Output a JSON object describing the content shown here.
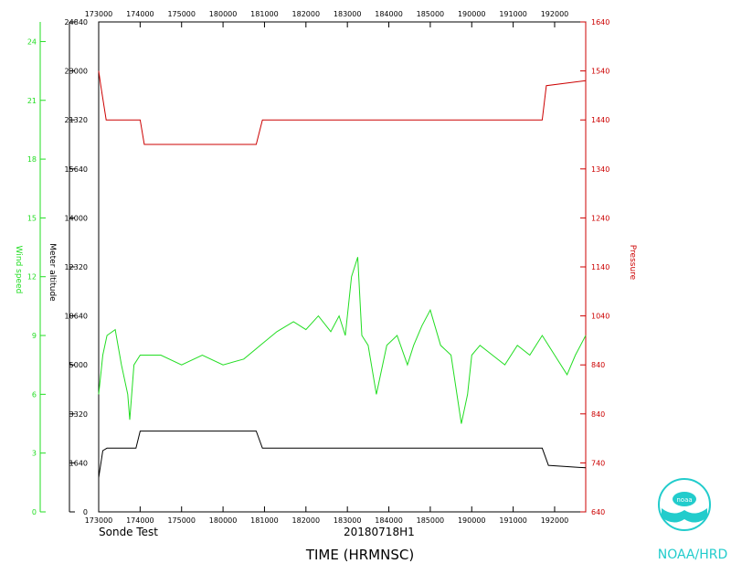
{
  "colors": {
    "wind": "#22dd22",
    "pressure": "#cc0000",
    "altitude": "#000000",
    "axis": "#000000",
    "logo": "#22cccc"
  },
  "labels": {
    "wind_axis": "Wind speed",
    "altitude_axis": "Meter altitude",
    "pressure_axis": "Pressure",
    "sonde": "Sonde Test",
    "flight": "20180718H1",
    "xtitle": "TIME (HRMNSC)",
    "logo": "NOAA/HRD",
    "logo_badge": "noaa"
  },
  "chart_data": {
    "type": "line",
    "xlabel": "TIME (HRMNSC)",
    "x_ticks": [
      "173000",
      "174000",
      "175000",
      "180000",
      "181000",
      "182000",
      "183000",
      "184000",
      "185000",
      "190000",
      "191000",
      "192000"
    ],
    "x_tick_indices": [
      0,
      1,
      2,
      3,
      4,
      5,
      6,
      7,
      8,
      9,
      10,
      11
    ],
    "x_range": [
      0,
      11.75
    ],
    "left_axis_wind": {
      "label": "Wind speed",
      "ticks": [
        "0",
        "3",
        "6",
        "9",
        "12",
        "15",
        "18",
        "21",
        "24"
      ],
      "range": [
        0,
        25
      ]
    },
    "left_axis_altitude": {
      "label": "Meter altitude",
      "ticks": [
        "0",
        "1640",
        "3320",
        "5000",
        "10640",
        "12320",
        "14000",
        "15640",
        "21320",
        "23000",
        "24840"
      ],
      "tick_positions": [
        0,
        1,
        2,
        3,
        4,
        5,
        6,
        7,
        8,
        9,
        10
      ]
    },
    "right_axis_pressure": {
      "label": "Pressure",
      "ticks": [
        "640",
        "740",
        "840",
        "840",
        "1040",
        "1140",
        "1240",
        "1340",
        "1440",
        "1540",
        "1640"
      ],
      "tick_positions": [
        0,
        1,
        2,
        3,
        4,
        5,
        6,
        7,
        8,
        9,
        10
      ]
    },
    "series": [
      {
        "name": "Pressure",
        "axis": "right",
        "x": [
          0,
          0.05,
          0.18,
          1.0,
          1.1,
          3.8,
          3.95,
          8.9,
          9.0,
          10.7,
          10.8,
          11.75
        ],
        "y": [
          9.0,
          8.7,
          8.0,
          8.0,
          7.5,
          7.5,
          8.0,
          8.0,
          8.0,
          8.0,
          8.7,
          8.8
        ]
      },
      {
        "name": "Altitude",
        "axis": "left",
        "x": [
          0,
          0.1,
          0.2,
          0.9,
          1.0,
          3.8,
          3.95,
          8.9,
          9.0,
          10.7,
          10.85,
          11.75
        ],
        "y": [
          0.7,
          1.25,
          1.3,
          1.3,
          1.65,
          1.65,
          1.3,
          1.3,
          1.3,
          1.3,
          0.95,
          0.9
        ]
      },
      {
        "name": "Wind speed",
        "axis": "left_wind",
        "x": [
          0,
          0.1,
          0.2,
          0.4,
          0.55,
          0.7,
          0.75,
          0.85,
          1.0,
          1.5,
          2.0,
          2.5,
          3.0,
          3.5,
          3.9,
          4.3,
          4.7,
          5.0,
          5.3,
          5.6,
          5.8,
          5.95,
          6.1,
          6.25,
          6.35,
          6.5,
          6.7,
          6.95,
          7.2,
          7.45,
          7.6,
          7.8,
          8.0,
          8.25,
          8.5,
          8.75,
          8.9,
          9.0,
          9.2,
          9.5,
          9.8,
          10.1,
          10.4,
          10.7,
          11.0,
          11.3,
          11.5,
          11.75
        ],
        "y": [
          6.0,
          8.0,
          9.0,
          9.3,
          7.5,
          6.0,
          4.7,
          7.5,
          8.0,
          8.0,
          7.5,
          8.0,
          7.5,
          7.8,
          8.5,
          9.2,
          9.7,
          9.3,
          10.0,
          9.2,
          10.0,
          9.0,
          12.0,
          13.0,
          9.0,
          8.5,
          6.0,
          8.5,
          9.0,
          7.5,
          8.5,
          9.5,
          10.3,
          8.5,
          8.0,
          4.5,
          6.0,
          8.0,
          8.5,
          8.0,
          7.5,
          8.5,
          8.0,
          9.0,
          8.0,
          7.0,
          8.0,
          9.0
        ]
      }
    ]
  }
}
